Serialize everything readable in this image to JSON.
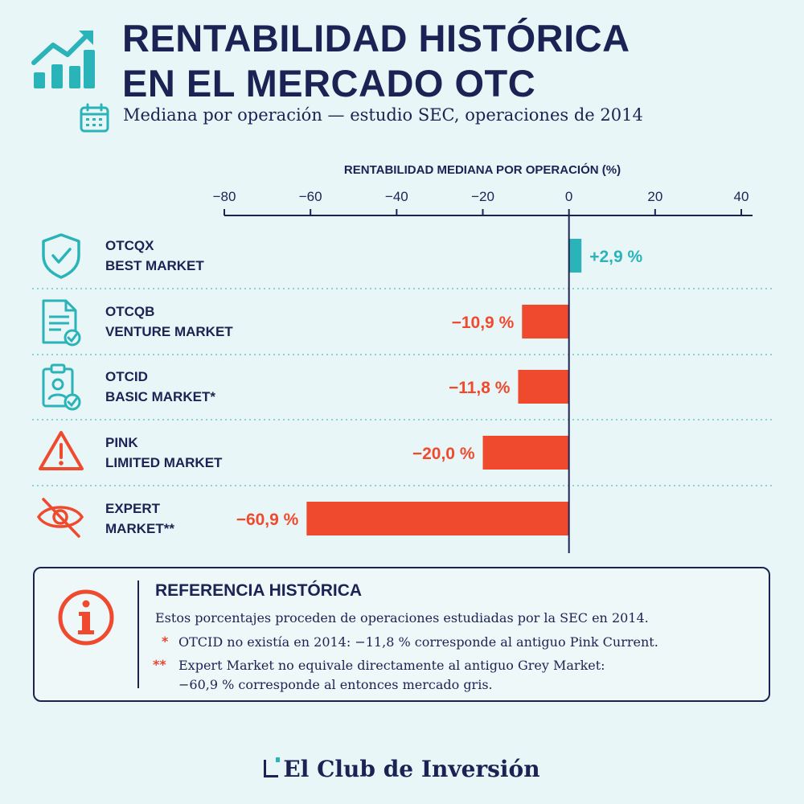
{
  "header": {
    "title_line1": "RENTABILIDAD HISTÓRICA",
    "title_line2": "EN EL MERCADO OTC",
    "subtitle": "Mediana por operación — estudio SEC, operaciones de 2014",
    "icons": [
      "growth-chart-icon",
      "calendar-icon"
    ]
  },
  "chart_data": {
    "type": "bar",
    "orientation": "horizontal",
    "xlabel": "RENTABILIDAD MEDIANA POR OPERACIÓN (%)",
    "xlim": [
      -80,
      40
    ],
    "xticks": [
      -80,
      -60,
      -40,
      -20,
      0,
      20,
      40
    ],
    "xtick_labels": [
      "−80",
      "−60",
      "−40",
      "−20",
      "0",
      "20",
      "40"
    ],
    "categories": [
      {
        "line1": "OTCQX",
        "line2": "BEST MARKET",
        "icon": "shield-check-icon"
      },
      {
        "line1": "OTCQB",
        "line2": "VENTURE MARKET",
        "icon": "document-check-icon"
      },
      {
        "line1": "OTCID",
        "line2": "BASIC MARKET*",
        "icon": "clipboard-user-icon"
      },
      {
        "line1": "PINK",
        "line2": "LIMITED MARKET",
        "icon": "warning-triangle-icon"
      },
      {
        "line1": "EXPERT",
        "line2": "MARKET**",
        "icon": "eye-off-icon"
      }
    ],
    "values": [
      2.9,
      -10.9,
      -11.8,
      -20.0,
      -60.9
    ],
    "value_labels": [
      "+2,9 %",
      "−10,9 %",
      "−11,8 %",
      "−20,0 %",
      "−60,9 %"
    ],
    "colors": {
      "positive": "#2ab3b8",
      "negative": "#f04a2e"
    }
  },
  "reference": {
    "title": "REFERENCIA HISTÓRICA",
    "line1": "Estos porcentajes proceden de operaciones estudiadas por la SEC en 2014.",
    "note1_marker": "*",
    "note1": "OTCID no existía en 2014: −11,8 % corresponde al antiguo Pink Current.",
    "note2_marker": "**",
    "note2_line1": "Expert Market no equivale directamente al antiguo Grey Market:",
    "note2_line2": "−60,9 % corresponde al entonces mercado gris.",
    "icon": "info-circle-icon"
  },
  "footer": {
    "brand": "El Club de Inversión"
  },
  "colors": {
    "navy": "#1b2354",
    "teal": "#2ab3b8",
    "red": "#f04a2e",
    "background": "#e9f6f7"
  }
}
